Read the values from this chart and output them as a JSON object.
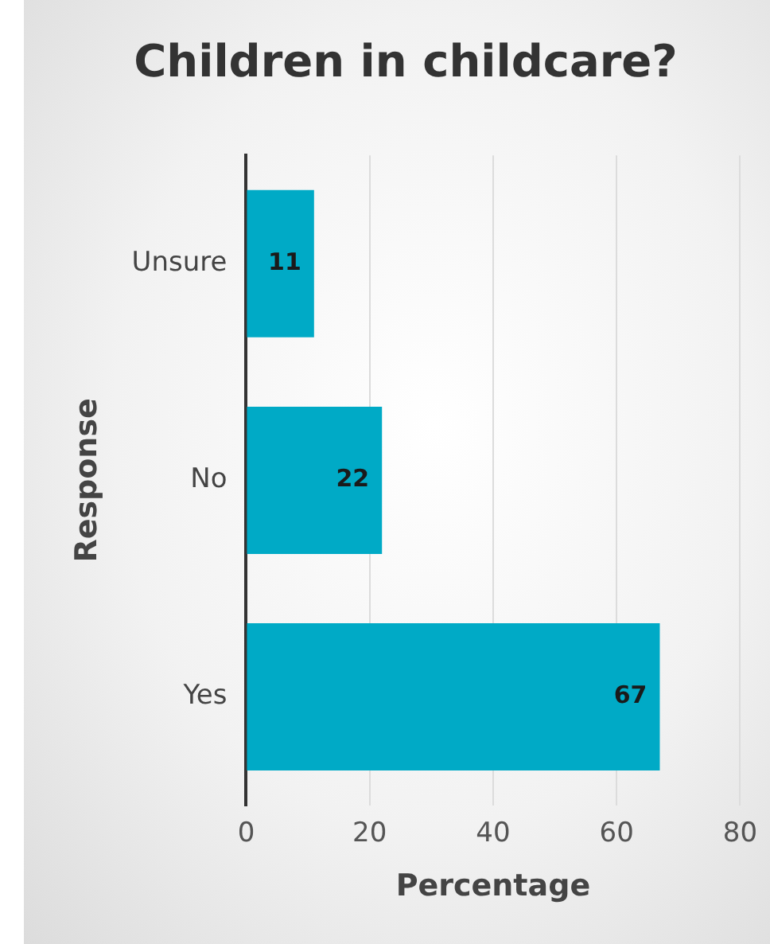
{
  "chart_data": {
    "type": "bar",
    "orientation": "horizontal",
    "title": "Children in childcare?",
    "xlabel": "Percentage",
    "ylabel": "Response",
    "categories": [
      "Unsure",
      "No",
      "Yes"
    ],
    "values": [
      11,
      22,
      67
    ],
    "color": "#00aac6",
    "xlim": [
      0,
      80
    ],
    "xticks": [
      0,
      20,
      40,
      60,
      80
    ],
    "grid": "x",
    "data_labels": true,
    "legend": false
  }
}
